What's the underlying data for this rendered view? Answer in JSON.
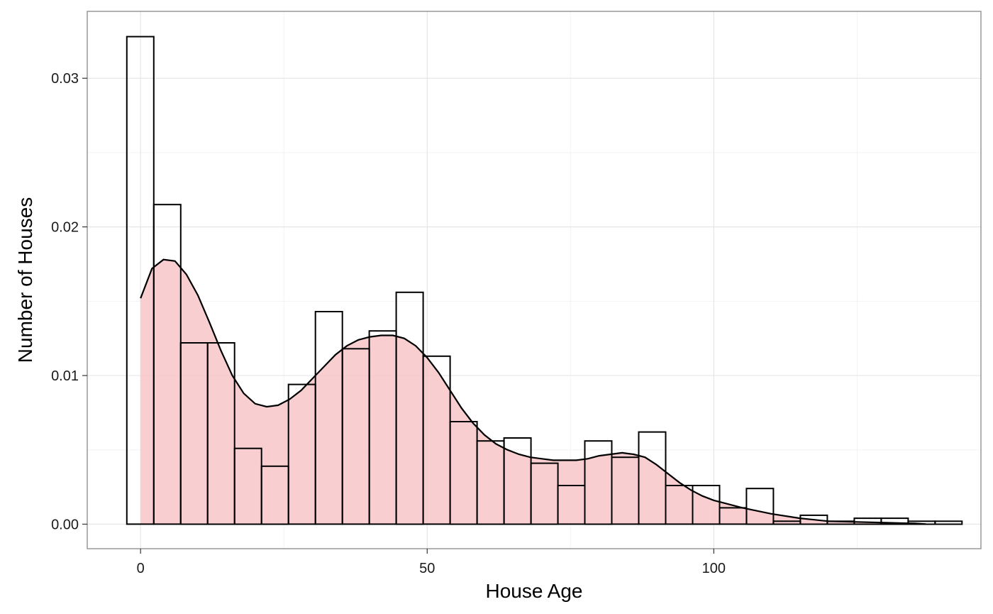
{
  "chart_data": {
    "type": "histogram+density",
    "title": "",
    "xlabel": "House Age",
    "ylabel": "Number of Houses",
    "xlim": [
      -9.3,
      146.6
    ],
    "ylim": [
      -0.00165,
      0.0345
    ],
    "x_ticks": [
      0,
      50,
      100
    ],
    "x_tick_labels": [
      "0",
      "50",
      "100"
    ],
    "y_ticks": [
      0,
      0.01,
      0.02,
      0.03
    ],
    "y_tick_labels": [
      "0.00",
      "0.01",
      "0.02",
      "0.03"
    ],
    "grid": true,
    "histogram": {
      "bin_width": 4.7,
      "bin_starts": [
        -2.4,
        2.3,
        7.0,
        11.7,
        16.4,
        21.1,
        25.8,
        30.5,
        35.2,
        39.9,
        44.6,
        49.3,
        54.0,
        58.7,
        63.4,
        68.1,
        72.8,
        77.5,
        82.2,
        86.9,
        91.6,
        96.3,
        101.0,
        105.7,
        110.4,
        115.1,
        119.8,
        124.5,
        129.2,
        133.9,
        138.6
      ],
      "values": [
        0.0328,
        0.0215,
        0.0122,
        0.0122,
        0.0051,
        0.0039,
        0.0094,
        0.0143,
        0.0118,
        0.013,
        0.0156,
        0.0113,
        0.0069,
        0.0056,
        0.0058,
        0.0041,
        0.0026,
        0.0056,
        0.0045,
        0.0062,
        0.0026,
        0.0026,
        0.0011,
        0.0024,
        0.0002,
        0.0006,
        0.0002,
        0.0004,
        0.0004,
        0.0002,
        0.0002
      ]
    },
    "density": {
      "x": [
        0,
        2,
        4,
        6,
        8,
        10,
        12,
        14,
        16,
        18,
        20,
        22,
        24,
        26,
        28,
        30,
        32,
        34,
        36,
        38,
        40,
        42,
        44,
        46,
        48,
        50,
        52,
        54,
        56,
        58,
        60,
        62,
        64,
        66,
        68,
        70,
        72,
        74,
        76,
        78,
        80,
        82,
        84,
        86,
        88,
        90,
        92,
        94,
        96,
        98,
        100,
        105,
        110,
        115,
        120,
        125,
        130,
        135,
        137
      ],
      "y": [
        0.0152,
        0.0172,
        0.0178,
        0.0177,
        0.0168,
        0.0154,
        0.0136,
        0.0117,
        0.01,
        0.0088,
        0.0081,
        0.0079,
        0.008,
        0.0084,
        0.009,
        0.0098,
        0.0106,
        0.0114,
        0.012,
        0.0124,
        0.0126,
        0.0127,
        0.0127,
        0.0125,
        0.012,
        0.0112,
        0.0102,
        0.009,
        0.0078,
        0.0068,
        0.006,
        0.0054,
        0.005,
        0.0047,
        0.0045,
        0.0044,
        0.0043,
        0.0043,
        0.0043,
        0.0044,
        0.0046,
        0.0047,
        0.0048,
        0.0047,
        0.0045,
        0.004,
        0.0034,
        0.0028,
        0.0023,
        0.0019,
        0.0016,
        0.0011,
        0.0007,
        0.0004,
        0.0002,
        0.00015,
        0.0001,
        5e-05,
        0.0
      ],
      "fill": "#f8c5c8",
      "fill_opacity": 0.85
    },
    "colors": {
      "bar_stroke": "#000000",
      "bar_fill": "none",
      "density_stroke": "#000000",
      "grid_major": "#e6e6e6",
      "grid_minor": "#f3f3f3",
      "panel_border": "#7f7f7f"
    }
  }
}
